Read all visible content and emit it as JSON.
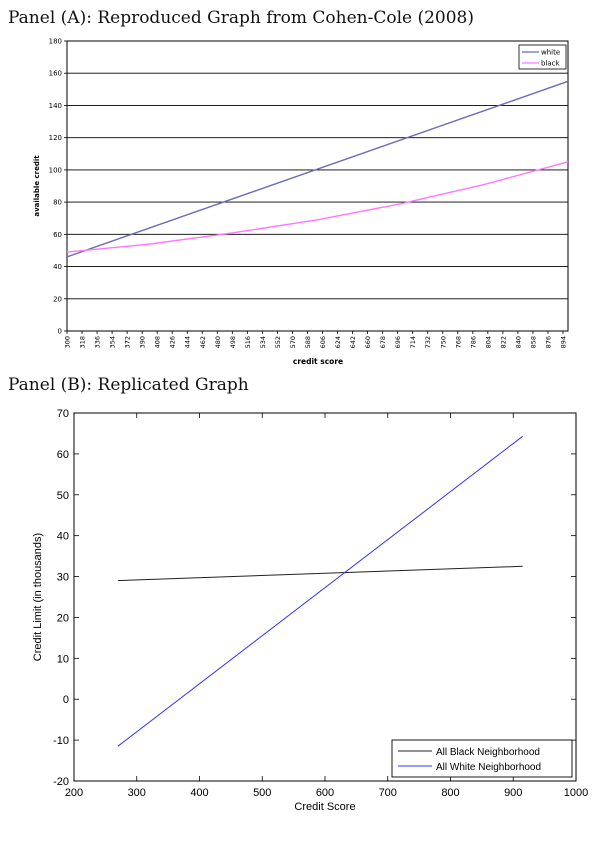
{
  "panels": {
    "a_title": "Panel (A):  Reproduced Graph from Cohen-Cole (2008)",
    "b_title": "Panel (B):  Replicated Graph"
  },
  "chart_data": [
    {
      "type": "line",
      "xlabel": "credit score",
      "ylabel": "available credit",
      "x_ticks": [
        300,
        318,
        336,
        354,
        372,
        390,
        408,
        426,
        444,
        462,
        480,
        498,
        516,
        534,
        552,
        570,
        588,
        606,
        624,
        642,
        660,
        678,
        696,
        714,
        732,
        750,
        768,
        786,
        804,
        822,
        840,
        858,
        876,
        894
      ],
      "xlim": [
        300,
        900
      ],
      "ylim": [
        0,
        180
      ],
      "y_ticks": [
        0,
        20,
        40,
        60,
        80,
        100,
        120,
        140,
        160,
        180
      ],
      "grid": "horizontal",
      "legend_position": "top-right",
      "series": [
        {
          "name": "white",
          "color": "#6b6bb8",
          "x": [
            300,
            900
          ],
          "y": [
            46,
            155
          ]
        },
        {
          "name": "black",
          "color": "#ff77ff",
          "x": [
            300,
            400,
            500,
            600,
            700,
            800,
            900
          ],
          "y": [
            49,
            54,
            61,
            69,
            79,
            91,
            105
          ]
        }
      ]
    },
    {
      "type": "line",
      "xlabel": "Credit Score",
      "ylabel": "Credit Limit (in thousands)",
      "xlim": [
        200,
        1000
      ],
      "ylim": [
        -20,
        70
      ],
      "x_ticks": [
        200,
        300,
        400,
        500,
        600,
        700,
        800,
        900,
        1000
      ],
      "y_ticks": [
        -20,
        -10,
        0,
        10,
        20,
        30,
        40,
        50,
        60,
        70
      ],
      "grid": "none",
      "legend_position": "bottom-right",
      "series": [
        {
          "name": "All Black Neighborhood",
          "color": "#222222",
          "x": [
            270,
            915
          ],
          "y": [
            29.0,
            32.5
          ]
        },
        {
          "name": "All White Neighborhood",
          "color": "#3333ee",
          "x": [
            270,
            915
          ],
          "y": [
            -11.5,
            64.3
          ]
        }
      ]
    }
  ]
}
